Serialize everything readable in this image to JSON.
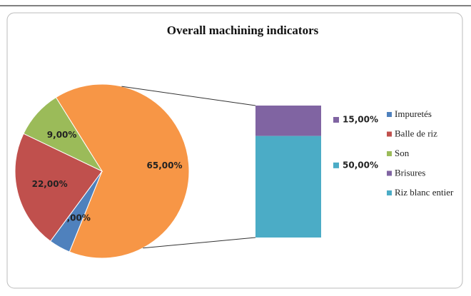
{
  "chart_data": {
    "type": "pie-of-bar",
    "title": "Overall machining indicators",
    "categories": [
      "Impuretés",
      "Balle de riz",
      "Son",
      "Brisures",
      "Riz blanc entier"
    ],
    "values": [
      4,
      22,
      9,
      15,
      50
    ],
    "value_labels": [
      "4,00%",
      "22,00%",
      "9,00%",
      "15,00%",
      "50,00%"
    ],
    "colors": [
      "#4f81bd",
      "#c0504d",
      "#9bbb59",
      "#8064a2",
      "#4bacc6"
    ],
    "combined": {
      "value": 65,
      "label": "65,00%",
      "color": "#f79646"
    },
    "legend": "right"
  }
}
